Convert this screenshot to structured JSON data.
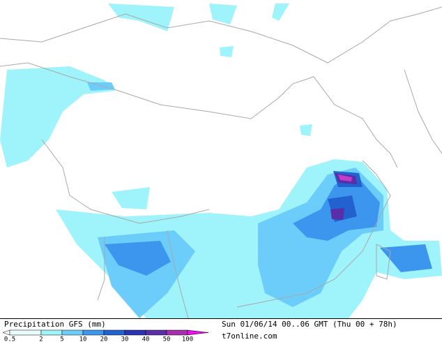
{
  "title": "Precipitation GFS (mm)",
  "run_info": "Sun 01/06/14 00..06 GMT (Thu 00 + 78h)",
  "source": "t7online.com",
  "legend": [
    {
      "value": 0.5,
      "color": "#e8fcfc"
    },
    {
      "value": 2,
      "color": "#9ff3fb"
    },
    {
      "value": 5,
      "color": "#6ccdfb"
    },
    {
      "value": 10,
      "color": "#3d96ee"
    },
    {
      "value": 20,
      "color": "#2262d0"
    },
    {
      "value": 30,
      "color": "#2a34b0"
    },
    {
      "value": 40,
      "color": "#5a2ea8"
    },
    {
      "value": 50,
      "color": "#a830b0"
    },
    {
      "value": 100,
      "color": "#ee10ee"
    }
  ]
}
